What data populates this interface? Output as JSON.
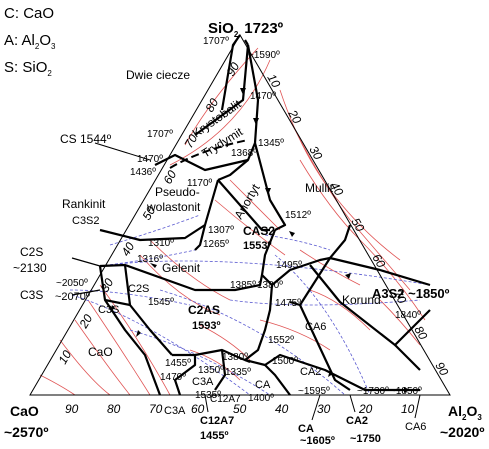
{
  "legend": [
    {
      "letter": "C",
      "formula": "CaO"
    },
    {
      "letter": "A",
      "formula": "Al",
      "sub": "2",
      "rest": "O",
      "sub2": "3"
    },
    {
      "letter": "S",
      "formula": "SiO",
      "sub": "2"
    }
  ],
  "vertices": {
    "sio2": {
      "name": "SiO",
      "sub": "2",
      "temp": "1723º"
    },
    "cao": {
      "name": "CaO",
      "temp": "~2570º"
    },
    "al2o3": {
      "name": "Al",
      "sub": "2",
      "rest": "O",
      "sub2": "3",
      "temp": "~2020º"
    }
  },
  "fields": {
    "dwie_ciecze": "Dwie ciecze",
    "krystobalit": "Krystobalit",
    "trydymit": "Trydymit",
    "pseudo1": "Pseudo-",
    "pseudo2": "wolastonit",
    "anortyt": "Anortyt",
    "mullit": "Mullit",
    "rankinit": "Rankinit",
    "c3s2": "C3S2",
    "gelenit": "Gelenit",
    "c2s_field": "C2S",
    "korund": "Korund",
    "cao_field": "CaO",
    "ca6_field": "CA6",
    "ca2_field": "CA2",
    "ca_field": "CA",
    "c3a_field": "C3A",
    "c12a7_field": "C12A7",
    "c3s_field": "C3S"
  },
  "compounds": {
    "cs": "CS 1544º",
    "c2s": "C2S",
    "c2s_temp": "~2130",
    "c3s": "C3S",
    "c3s_temp": "~2070º",
    "cas2": "CAS2",
    "cas2_temp": "1553º",
    "c2as": "C2AS",
    "c2as_temp": "1593º",
    "a3s2": "A3S2 ~1850º",
    "c3a": "C3A",
    "c12a7": "C12A7",
    "c12a7_temp": "1455º",
    "ca": "CA",
    "ca_temp": "~1605º",
    "ca2": "CA2",
    "ca2_temp": "~1750",
    "ca6": "CA6"
  },
  "invariant_points": [
    "1707º",
    "~1590º",
    "1470º",
    "1707º",
    "1470º",
    "1436º",
    "1368º",
    "1345º",
    "1170º",
    "1512º",
    "1310º",
    "1316º",
    "1307º",
    "1265º",
    "1495º",
    "~2050º",
    "1545º",
    "1385º",
    "1380º",
    "1475º",
    "1840º",
    "1552º",
    "1380º",
    "1455º",
    "1350º",
    "1470º",
    "1335º",
    "1535º",
    "1500º",
    "1400º",
    "~1595º",
    "~1730º",
    "~1850º"
  ],
  "ticks": {
    "left_edge": [
      "10",
      "20",
      "30",
      "40",
      "50",
      "60",
      "70",
      "80",
      "90"
    ],
    "right_edge": [
      "10",
      "20",
      "30",
      "40",
      "50",
      "60",
      "70",
      "80",
      "90"
    ],
    "bottom_edge": [
      "90",
      "80",
      "70",
      "60",
      "50",
      "40",
      "30",
      "20",
      "10"
    ]
  }
}
